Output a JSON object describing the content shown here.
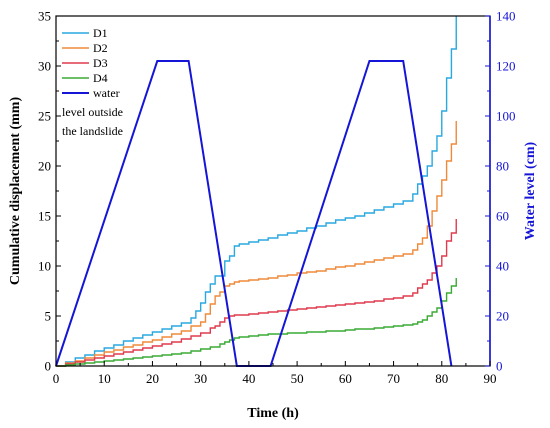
{
  "chart_data": {
    "type": "line",
    "xlabel": "Time (h)",
    "ylabel": "Cumulative displacement (mm)",
    "y2label": "Water level (cm)",
    "xlim": [
      0,
      90
    ],
    "ylim": [
      0,
      35
    ],
    "y2lim": [
      0,
      140
    ],
    "x_ticks": [
      0,
      10,
      20,
      30,
      40,
      50,
      60,
      70,
      80,
      90
    ],
    "y_ticks": [
      0,
      5,
      10,
      15,
      20,
      25,
      30,
      35
    ],
    "y2_ticks": [
      0,
      20,
      40,
      60,
      80,
      100,
      120,
      140
    ],
    "grid": false,
    "legend_position": "top-left",
    "series": [
      {
        "name": "D1",
        "axis": "left",
        "color": "#29a9df",
        "x": [
          0,
          2,
          4,
          6,
          8,
          10,
          12,
          14,
          16,
          18,
          20,
          22,
          24,
          26,
          28,
          29,
          30,
          31,
          32,
          33,
          35,
          36,
          37,
          38,
          40,
          42,
          44,
          46,
          48,
          50,
          52,
          54,
          56,
          58,
          60,
          62,
          64,
          66,
          68,
          70,
          72,
          74,
          75,
          76,
          77,
          78,
          79,
          80,
          81,
          82,
          83
        ],
        "y": [
          0,
          0.4,
          0.8,
          1.1,
          1.5,
          1.8,
          2.1,
          2.5,
          2.8,
          3.1,
          3.4,
          3.7,
          4.0,
          4.3,
          4.8,
          5.5,
          6.3,
          7.4,
          8.2,
          9.0,
          10.5,
          11.0,
          12.0,
          12.2,
          12.4,
          12.6,
          12.8,
          13.1,
          13.3,
          13.5,
          13.8,
          14.0,
          14.3,
          14.6,
          14.8,
          15.0,
          15.3,
          15.6,
          15.9,
          16.2,
          16.5,
          17.2,
          18.2,
          19.0,
          20.0,
          21.5,
          23.0,
          25.5,
          28.8,
          31.7,
          35.0
        ]
      },
      {
        "name": "D2",
        "axis": "left",
        "color": "#ef8a3a",
        "x": [
          0,
          2,
          4,
          6,
          8,
          10,
          12,
          14,
          16,
          18,
          20,
          22,
          24,
          26,
          28,
          30,
          31,
          32,
          33,
          34,
          35,
          36,
          37,
          38,
          40,
          42,
          44,
          46,
          48,
          50,
          52,
          54,
          56,
          58,
          60,
          62,
          64,
          66,
          68,
          70,
          72,
          74,
          75,
          76,
          77,
          78,
          79,
          80,
          81,
          82,
          83
        ],
        "y": [
          0,
          0.3,
          0.5,
          0.8,
          1.1,
          1.4,
          1.6,
          1.9,
          2.1,
          2.4,
          2.6,
          2.9,
          3.2,
          3.5,
          4.0,
          4.4,
          5.2,
          6.2,
          7.0,
          7.4,
          8.0,
          8.2,
          8.4,
          8.5,
          8.6,
          8.7,
          8.8,
          9.0,
          9.1,
          9.3,
          9.4,
          9.5,
          9.7,
          9.9,
          10.0,
          10.2,
          10.4,
          10.6,
          10.8,
          11.0,
          11.2,
          11.6,
          12.2,
          12.8,
          14.0,
          15.5,
          17.0,
          18.6,
          20.5,
          22.2,
          24.5
        ]
      },
      {
        "name": "D3",
        "axis": "left",
        "color": "#e03a4e",
        "x": [
          0,
          2,
          4,
          6,
          8,
          10,
          12,
          14,
          16,
          18,
          20,
          22,
          24,
          26,
          28,
          30,
          32,
          33,
          34,
          35,
          36,
          37,
          38,
          40,
          42,
          44,
          46,
          48,
          50,
          52,
          54,
          56,
          58,
          60,
          62,
          64,
          66,
          68,
          70,
          72,
          74,
          75,
          76,
          77,
          78,
          79,
          80,
          81,
          82,
          83
        ],
        "y": [
          0,
          0.2,
          0.4,
          0.6,
          0.8,
          1.0,
          1.2,
          1.4,
          1.6,
          1.8,
          2.0,
          2.2,
          2.4,
          2.7,
          3.0,
          3.3,
          3.8,
          4.0,
          4.4,
          4.8,
          5.0,
          5.1,
          5.1,
          5.2,
          5.3,
          5.4,
          5.5,
          5.6,
          5.7,
          5.8,
          5.9,
          6.0,
          6.1,
          6.2,
          6.3,
          6.4,
          6.5,
          6.7,
          6.8,
          7.0,
          7.3,
          7.8,
          8.2,
          8.6,
          9.3,
          10.0,
          11.0,
          12.5,
          13.3,
          14.7
        ]
      },
      {
        "name": "D4",
        "axis": "left",
        "color": "#3aaa35",
        "x": [
          0,
          2,
          4,
          6,
          8,
          10,
          12,
          14,
          16,
          18,
          20,
          22,
          24,
          26,
          28,
          30,
          32,
          34,
          35,
          36,
          37,
          38,
          40,
          42,
          44,
          46,
          48,
          50,
          52,
          54,
          56,
          58,
          60,
          62,
          64,
          66,
          68,
          70,
          72,
          74,
          75,
          76,
          77,
          78,
          79,
          80,
          81,
          82,
          83
        ],
        "y": [
          0,
          0.1,
          0.2,
          0.3,
          0.4,
          0.5,
          0.6,
          0.7,
          0.8,
          0.9,
          1.0,
          1.1,
          1.2,
          1.3,
          1.5,
          1.7,
          1.9,
          2.2,
          2.4,
          2.6,
          2.8,
          2.9,
          3.0,
          3.1,
          3.2,
          3.2,
          3.3,
          3.3,
          3.4,
          3.4,
          3.5,
          3.5,
          3.6,
          3.7,
          3.7,
          3.8,
          3.9,
          4.0,
          4.1,
          4.2,
          4.4,
          4.6,
          5.0,
          5.4,
          5.8,
          6.5,
          7.3,
          8.0,
          8.8
        ]
      },
      {
        "name": "water level outside the landslide",
        "axis": "right",
        "color": "#1515d8",
        "x": [
          0,
          21,
          27.5,
          37.5,
          44.5,
          65,
          72,
          82
        ],
        "y": [
          0,
          122,
          122,
          0,
          0,
          122,
          122,
          0
        ]
      }
    ]
  }
}
